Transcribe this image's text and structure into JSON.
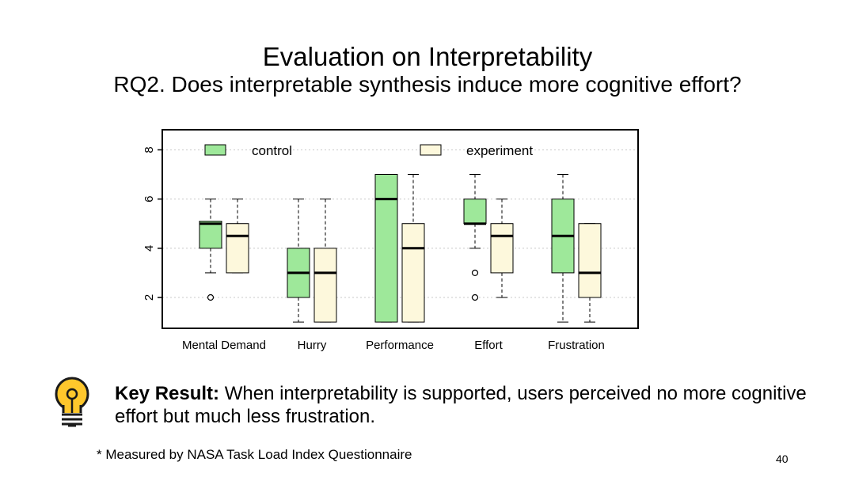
{
  "slide": {
    "title": "Evaluation on Interpretability",
    "subtitle": "RQ2. Does interpretable synthesis induce more cognitive effort?",
    "key_result_label": "Key Result:",
    "key_result_text": " When interpretability is supported, users perceived no more cognitive effort but much less frustration.",
    "footnote": "* Measured by NASA Task Load Index Questionnaire",
    "page_number": "40",
    "bulb_icon": "lightbulb-icon"
  },
  "chart_data": {
    "type": "boxplot",
    "title": "",
    "xlabel": "",
    "ylabel": "",
    "ylim": [
      1,
      9
    ],
    "yticks": [
      2,
      4,
      6,
      8
    ],
    "grid": "horizontal-dashed",
    "legend_position": "top",
    "categories": [
      "Mental Demand",
      "Hurry",
      "Performance",
      "Effort",
      "Frustration"
    ],
    "series": [
      {
        "name": "control",
        "color": "#9ee89a",
        "boxes": [
          {
            "min": 3,
            "q1": 4,
            "median": 5,
            "q3": 5.1,
            "max": 6,
            "outliers": [
              2
            ]
          },
          {
            "min": 1,
            "q1": 2,
            "median": 3,
            "q3": 4,
            "max": 6,
            "outliers": []
          },
          {
            "min": 1,
            "q1": 1,
            "median": 6,
            "q3": 7,
            "max": 7,
            "outliers": []
          },
          {
            "min": 4,
            "q1": 5,
            "median": 5,
            "q3": 6,
            "max": 7,
            "outliers": [
              3,
              2
            ]
          },
          {
            "min": 1,
            "q1": 3,
            "median": 4.5,
            "q3": 6,
            "max": 7,
            "outliers": []
          }
        ]
      },
      {
        "name": "experiment",
        "color": "#fdf8dc",
        "boxes": [
          {
            "min": 3,
            "q1": 3,
            "median": 4.5,
            "q3": 5,
            "max": 6,
            "outliers": []
          },
          {
            "min": 1,
            "q1": 1,
            "median": 3,
            "q3": 4,
            "max": 6,
            "outliers": []
          },
          {
            "min": 1,
            "q1": 1,
            "median": 4,
            "q3": 5,
            "max": 7,
            "outliers": []
          },
          {
            "min": 2,
            "q1": 3,
            "median": 4.5,
            "q3": 5,
            "max": 6,
            "outliers": []
          },
          {
            "min": 1,
            "q1": 2,
            "median": 3,
            "q3": 5,
            "max": 5,
            "outliers": []
          }
        ]
      }
    ]
  }
}
